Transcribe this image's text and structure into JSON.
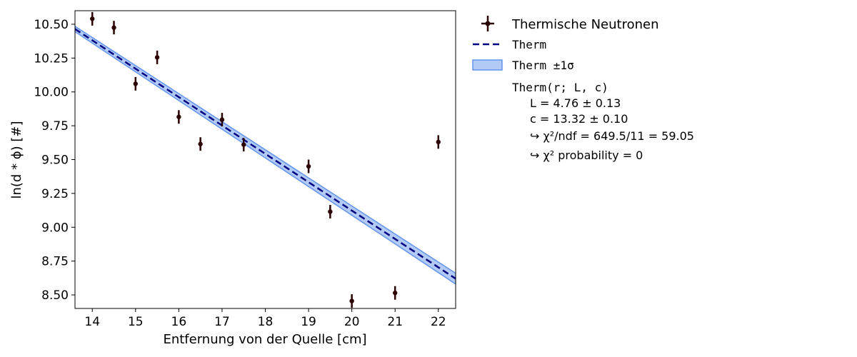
{
  "chart_data": {
    "type": "scatter",
    "xlabel": "Entfernung von der Quelle [cm]",
    "ylabel": "ln(d * ϕ) [#]",
    "xlim": [
      13.6,
      22.4
    ],
    "ylim": [
      8.4,
      10.6
    ],
    "xticks": [
      14,
      15,
      16,
      17,
      18,
      19,
      20,
      21,
      22
    ],
    "xtick_labels": [
      "14",
      "15",
      "16",
      "17",
      "18",
      "19",
      "20",
      "21",
      "22"
    ],
    "yticks": [
      8.5,
      8.75,
      9.0,
      9.25,
      9.5,
      9.75,
      10.0,
      10.25,
      10.5
    ],
    "ytick_labels": [
      "8.50",
      "8.75",
      "9.00",
      "9.25",
      "9.50",
      "9.75",
      "10.00",
      "10.25",
      "10.50"
    ],
    "grid": false,
    "legend_position": "outside-right",
    "series": [
      {
        "name": "Thermische Neutronen",
        "kind": "errorbar",
        "color": "#2a0000",
        "x": [
          14,
          14.5,
          15,
          15.5,
          16,
          16.5,
          17,
          17.5,
          19,
          19.5,
          20,
          21,
          22
        ],
        "y": [
          10.54,
          10.475,
          10.06,
          10.255,
          9.815,
          9.615,
          9.795,
          9.61,
          9.45,
          9.115,
          8.455,
          8.515,
          9.63
        ],
        "yerr": [
          0.05,
          0.05,
          0.05,
          0.05,
          0.05,
          0.05,
          0.05,
          0.05,
          0.05,
          0.05,
          0.05,
          0.05,
          0.05
        ]
      },
      {
        "name": "Therm",
        "kind": "line",
        "color": "#000080",
        "style": "dashed",
        "x": [
          13.6,
          22.4
        ],
        "y": [
          10.465,
          8.62
        ]
      },
      {
        "name": "Therm ±1σ",
        "kind": "band",
        "color": "#6495ed",
        "x": [
          13.6,
          22.4
        ],
        "y_low": [
          10.445,
          8.58
        ],
        "y_high": [
          10.485,
          8.66
        ]
      }
    ],
    "legend": {
      "entries": [
        "Thermische Neutronen",
        "Therm",
        "Therm ±1σ"
      ],
      "fit_title": "Therm(r; L, c)",
      "params": [
        "L = 4.76 ± 0.13",
        "c = 13.32 ± 0.10",
        "↪ χ²/ndf = 649.5/11 = 59.05",
        "↪ χ² probability = 0"
      ]
    }
  }
}
